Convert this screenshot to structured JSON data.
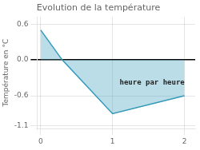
{
  "chart_data": {
    "type": "area",
    "title": "Evolution de la température",
    "ylabel": "Température en °C",
    "x": [
      0,
      0.3,
      1,
      2
    ],
    "values": [
      0.5,
      0.0,
      -0.9,
      -0.6
    ],
    "color": "#3399bb",
    "xlim": [
      -0.05,
      2.15
    ],
    "ylim": [
      -1.15,
      0.72
    ],
    "xticks": [
      0,
      1,
      2
    ],
    "yticks": [
      -1.1,
      -0.6,
      {
        "value": 0.0,
        "label": "0.0"
      },
      0.6
    ],
    "grid": true,
    "annotations": [
      {
        "text": "heure par heure",
        "x": 1.55,
        "y": -0.38
      }
    ]
  }
}
